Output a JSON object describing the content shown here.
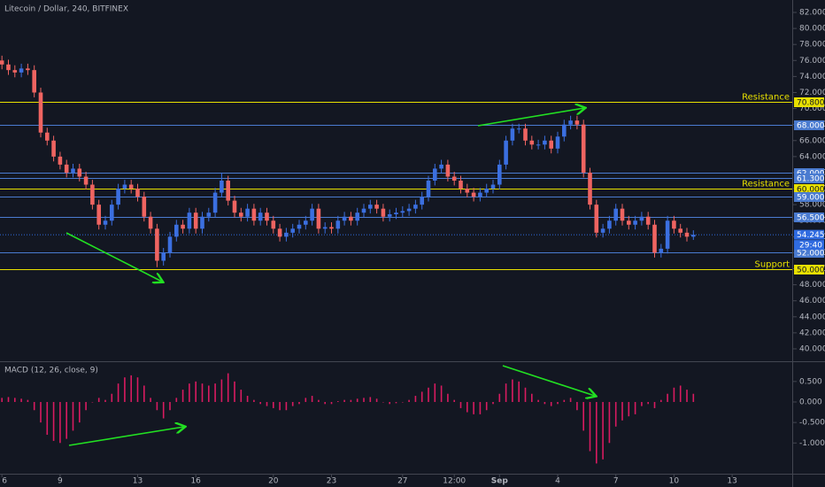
{
  "chart_data": [
    {
      "type": "candlestick",
      "title": "Litecoin / Dollar, 240, BITFINEX",
      "up_color": "#3b6fe0",
      "down_color": "#ef6461",
      "ylim": [
        38.45,
        83.55
      ],
      "xlim": [
        -0.3,
        122.3
      ],
      "yticks": [
        {
          "value": 40,
          "label": "40.000"
        },
        {
          "value": 42,
          "label": "42.000"
        },
        {
          "value": 44,
          "label": "44.000"
        },
        {
          "value": 46,
          "label": "46.000"
        },
        {
          "value": 48,
          "label": "48.000"
        },
        {
          "value": 50,
          "label": "50.000"
        },
        {
          "value": 52,
          "label": "52.000"
        },
        {
          "value": 54,
          "label": "54.000"
        },
        {
          "value": 56,
          "label": "56.000"
        },
        {
          "value": 58,
          "label": "58.000"
        },
        {
          "value": 60,
          "label": "60.000"
        },
        {
          "value": 62,
          "label": "62.000"
        },
        {
          "value": 64,
          "label": "64.000"
        },
        {
          "value": 66,
          "label": "66.000"
        },
        {
          "value": 68,
          "label": "68.000"
        },
        {
          "value": 70,
          "label": "70.000"
        },
        {
          "value": 72,
          "label": "72.000"
        },
        {
          "value": 74,
          "label": "74.000"
        },
        {
          "value": 76,
          "label": "76.000"
        },
        {
          "value": 78,
          "label": "78.000"
        },
        {
          "value": 80,
          "label": "80.000"
        },
        {
          "value": 82,
          "label": "82.000"
        }
      ],
      "open": [
        76,
        75.5,
        74.8,
        74.5,
        75,
        74.8,
        72,
        67,
        66,
        64,
        63,
        62,
        62.5,
        61.5,
        60.5,
        58,
        55.5,
        56,
        58,
        60,
        60.5,
        60,
        59,
        56.5,
        55,
        51,
        52,
        54,
        55.5,
        55,
        57,
        55,
        56.5,
        57,
        59.5,
        61,
        58.5,
        57,
        56.5,
        57.5,
        56,
        57,
        56,
        55,
        54,
        54.5,
        55,
        55.5,
        56,
        57.5,
        55,
        55.2,
        55,
        56,
        56.5,
        56,
        57,
        57.5,
        58,
        57.5,
        56.5,
        56.8,
        57,
        57.2,
        57.5,
        58,
        59,
        61,
        62.5,
        63,
        61.5,
        61,
        60,
        59.5,
        59,
        59.5,
        60,
        60.5,
        63,
        66,
        67.5,
        67.5,
        66,
        65.5,
        65.5,
        66,
        65,
        66.5,
        68,
        68.5,
        68,
        62,
        58,
        54.5,
        55,
        56,
        57.5,
        56,
        55.5,
        56,
        56.5,
        55.5,
        52,
        52.5,
        56,
        55,
        54.5,
        54
      ],
      "high": [
        76.6,
        76.1,
        75.4,
        75.6,
        75.6,
        75.4,
        72.6,
        67.6,
        66.6,
        64.6,
        63.6,
        63.1,
        63.1,
        62.1,
        61.1,
        58.6,
        56.6,
        58.6,
        60.6,
        61.1,
        61.1,
        60.6,
        59.6,
        57.1,
        55.6,
        52.6,
        54.6,
        56.1,
        56.1,
        57.6,
        57.6,
        57.1,
        57.6,
        60.1,
        62,
        61.6,
        59.1,
        57.6,
        58.1,
        58.1,
        57.6,
        57.6,
        56.6,
        55.6,
        55.1,
        55.6,
        56.1,
        56.6,
        58.1,
        58.1,
        55.8,
        55.8,
        56.6,
        57.1,
        57.1,
        57.6,
        58.1,
        58.6,
        58.6,
        58.1,
        57.4,
        57.6,
        57.8,
        58.1,
        58.6,
        59.6,
        61.6,
        63.1,
        63.6,
        63.6,
        62.1,
        61.6,
        60.6,
        60.1,
        60.1,
        60.6,
        61.1,
        63.6,
        66.6,
        68.1,
        68.1,
        68.1,
        66.6,
        66.1,
        66.6,
        66.6,
        67.1,
        68.6,
        69.1,
        69.1,
        68.6,
        62.6,
        58.6,
        55.6,
        56.6,
        58.1,
        58.1,
        56.6,
        56.6,
        57.1,
        57.1,
        56.1,
        53.1,
        56.6,
        56.6,
        55.6,
        55.1,
        54.8
      ],
      "low": [
        74.9,
        74.2,
        73.9,
        73.9,
        74.2,
        71.4,
        66.4,
        65.4,
        63.4,
        62.4,
        61.4,
        61.4,
        60.9,
        59.9,
        57.4,
        54.9,
        54.9,
        55.4,
        57.4,
        59.4,
        59.4,
        58.4,
        55.9,
        54.4,
        50.2,
        50.4,
        51.4,
        53.4,
        54.4,
        54.4,
        54.4,
        54.4,
        55.9,
        56.4,
        58.9,
        57.9,
        56.4,
        55.9,
        55.9,
        55.4,
        55.4,
        55.4,
        54.4,
        53.4,
        53.4,
        53.9,
        54.4,
        54.9,
        55.4,
        54.4,
        54.4,
        54.4,
        54.4,
        55.4,
        55.4,
        55.4,
        56.4,
        56.9,
        56.9,
        55.9,
        55.9,
        56.2,
        56.4,
        56.6,
        56.9,
        57.4,
        58.4,
        60.4,
        61.9,
        60.9,
        60.4,
        59.4,
        58.9,
        58.4,
        58.4,
        58.9,
        59.4,
        59.9,
        62.4,
        65.4,
        66.9,
        65.4,
        64.9,
        64.9,
        64.9,
        64.4,
        64.4,
        65.9,
        67.4,
        67.4,
        61.4,
        57.4,
        53.9,
        53.9,
        54.4,
        55.4,
        55.4,
        54.9,
        54.9,
        55.4,
        54.9,
        51.4,
        51.4,
        51.9,
        54.4,
        53.9,
        53.4,
        53.6
      ],
      "close": [
        75.5,
        74.8,
        74.5,
        75,
        74.8,
        72,
        67,
        66,
        64,
        63,
        62,
        62.5,
        61.5,
        60.5,
        58,
        55.5,
        56,
        58,
        60,
        60.5,
        60,
        59,
        56.5,
        55,
        51,
        52,
        54,
        55.5,
        55,
        57,
        55,
        56.5,
        57,
        59.5,
        61,
        58.5,
        57,
        56.5,
        57.5,
        56,
        57,
        56,
        55,
        54,
        54.5,
        55,
        55.5,
        56,
        57.5,
        55,
        55.2,
        55,
        56,
        56.5,
        56,
        57,
        57.5,
        58,
        57.5,
        56.5,
        56.8,
        57,
        57.2,
        57.5,
        58,
        59,
        61,
        62.5,
        63,
        61.5,
        61,
        60,
        59.5,
        59,
        59.5,
        60,
        60.5,
        63,
        66,
        67.5,
        67.5,
        66,
        65.5,
        65.5,
        66,
        65,
        66.5,
        68,
        68.5,
        68,
        62,
        58,
        54.5,
        55,
        56,
        57.5,
        56,
        55.5,
        56,
        56.5,
        55.5,
        52,
        52.5,
        56,
        55,
        54.5,
        54,
        54.245
      ],
      "levels": [
        {
          "value": 70.8,
          "label": "70.800",
          "color": "#e8e000",
          "annotation": "Resistance"
        },
        {
          "value": 68,
          "label": "68.000",
          "color": "#4a7bd0"
        },
        {
          "value": 62,
          "label": "62.000",
          "color": "#4a7bd0"
        },
        {
          "value": 61.3,
          "label": "61.300",
          "color": "#4a7bd0"
        },
        {
          "value": 60,
          "label": "60.000",
          "color": "#e8e000",
          "annotation": "Resistance"
        },
        {
          "value": 59,
          "label": "59.000",
          "color": "#4a7bd0"
        },
        {
          "value": 56.5,
          "label": "56.500",
          "color": "#4a7bd0"
        },
        {
          "value": 52,
          "label": "52.000",
          "color": "#4a7bd0"
        },
        {
          "value": 50,
          "label": "50.000",
          "color": "#e8e000",
          "annotation": "Support"
        }
      ],
      "last_price": {
        "value": 54.245,
        "label": "54.245",
        "color": "#2f6be0"
      },
      "countdown": "29:40"
    },
    {
      "type": "bar",
      "title": "MACD (12, 26, close, 9)",
      "color": "#d81b60",
      "ylim": [
        -1.75,
        0.95
      ],
      "xlim": [
        -0.3,
        122.3
      ],
      "yticks": [
        {
          "value": 0.5,
          "label": "0.500"
        },
        {
          "value": 0,
          "label": "0.000"
        },
        {
          "value": -0.5,
          "label": "-0.500"
        },
        {
          "value": -1,
          "label": "-1.000"
        }
      ],
      "values": [
        0.1,
        0.12,
        0.1,
        0.08,
        0.05,
        -0.2,
        -0.5,
        -0.8,
        -0.95,
        -1.0,
        -0.9,
        -0.7,
        -0.5,
        -0.2,
        0,
        0.1,
        0.05,
        0.2,
        0.45,
        0.6,
        0.65,
        0.6,
        0.4,
        0.1,
        -0.2,
        -0.4,
        -0.2,
        0.1,
        0.3,
        0.45,
        0.5,
        0.45,
        0.4,
        0.45,
        0.55,
        0.7,
        0.5,
        0.3,
        0.15,
        0.05,
        -0.05,
        -0.1,
        -0.15,
        -0.2,
        -0.2,
        -0.1,
        -0.05,
        0.1,
        0.15,
        0.05,
        -0.05,
        -0.05,
        0.02,
        0.05,
        0.05,
        0.08,
        0.1,
        0.12,
        0.08,
        0,
        -0.05,
        -0.03,
        0,
        0.05,
        0.15,
        0.25,
        0.35,
        0.45,
        0.4,
        0.2,
        0.05,
        -0.15,
        -0.25,
        -0.3,
        -0.3,
        -0.2,
        -0.05,
        0.2,
        0.45,
        0.55,
        0.5,
        0.35,
        0.2,
        0.05,
        -0.05,
        -0.1,
        -0.05,
        0.05,
        0.1,
        -0.2,
        -0.7,
        -1.2,
        -1.5,
        -1.4,
        -1.0,
        -0.6,
        -0.45,
        -0.35,
        -0.3,
        -0.1,
        -0.05,
        -0.15,
        0.05,
        0.2,
        0.35,
        0.4,
        0.3,
        0.2
      ],
      "xticks": [
        {
          "value": 0,
          "label": "6"
        },
        {
          "value": 9,
          "label": "9"
        },
        {
          "value": 21,
          "label": "13"
        },
        {
          "value": 30,
          "label": "16"
        },
        {
          "value": 42,
          "label": "20"
        },
        {
          "value": 51,
          "label": "23"
        },
        {
          "value": 62,
          "label": "27"
        },
        {
          "value": 70,
          "label": "12:00"
        },
        {
          "value": 77,
          "label": "Sep"
        },
        {
          "value": 86,
          "label": "4"
        },
        {
          "value": 95,
          "label": "7"
        },
        {
          "value": 104,
          "label": "10"
        },
        {
          "value": 113,
          "label": "13"
        }
      ]
    }
  ]
}
